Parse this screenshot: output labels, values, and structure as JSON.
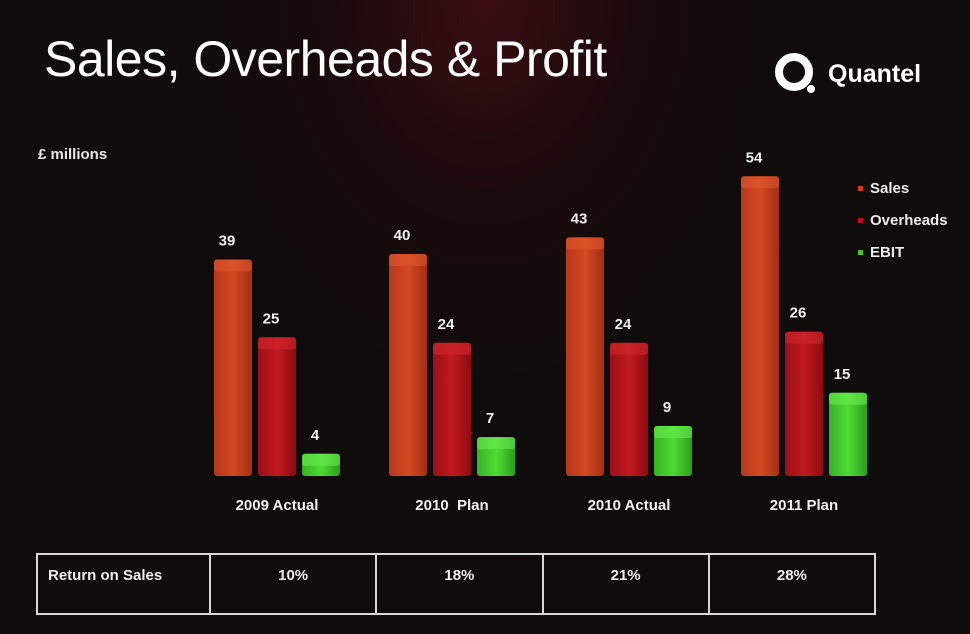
{
  "header": {
    "title": "Sales, Overheads & Profit",
    "logo_text": "Quantel"
  },
  "chart_data": {
    "type": "bar",
    "title": "Sales, Overheads & Profit",
    "ylabel": "£ millions",
    "xlabel": "",
    "categories": [
      "2009 Actual",
      "2010  Plan",
      "2010 Actual",
      "2011 Plan"
    ],
    "series": [
      {
        "name": "Sales",
        "color": "#c9401c",
        "values": [
          39,
          40,
          43,
          54
        ]
      },
      {
        "name": "Overheads",
        "color": "#b0141a",
        "values": [
          25,
          24,
          24,
          26
        ]
      },
      {
        "name": "EBIT",
        "color": "#3ecb2a",
        "values": [
          4,
          7,
          9,
          15
        ]
      }
    ],
    "ylim": [
      0,
      60
    ],
    "grid": false,
    "legend": "top-right",
    "data_labels": true
  },
  "table": {
    "row_label": "Return on Sales",
    "values": [
      "10%",
      "18%",
      "21%",
      "28%"
    ]
  }
}
